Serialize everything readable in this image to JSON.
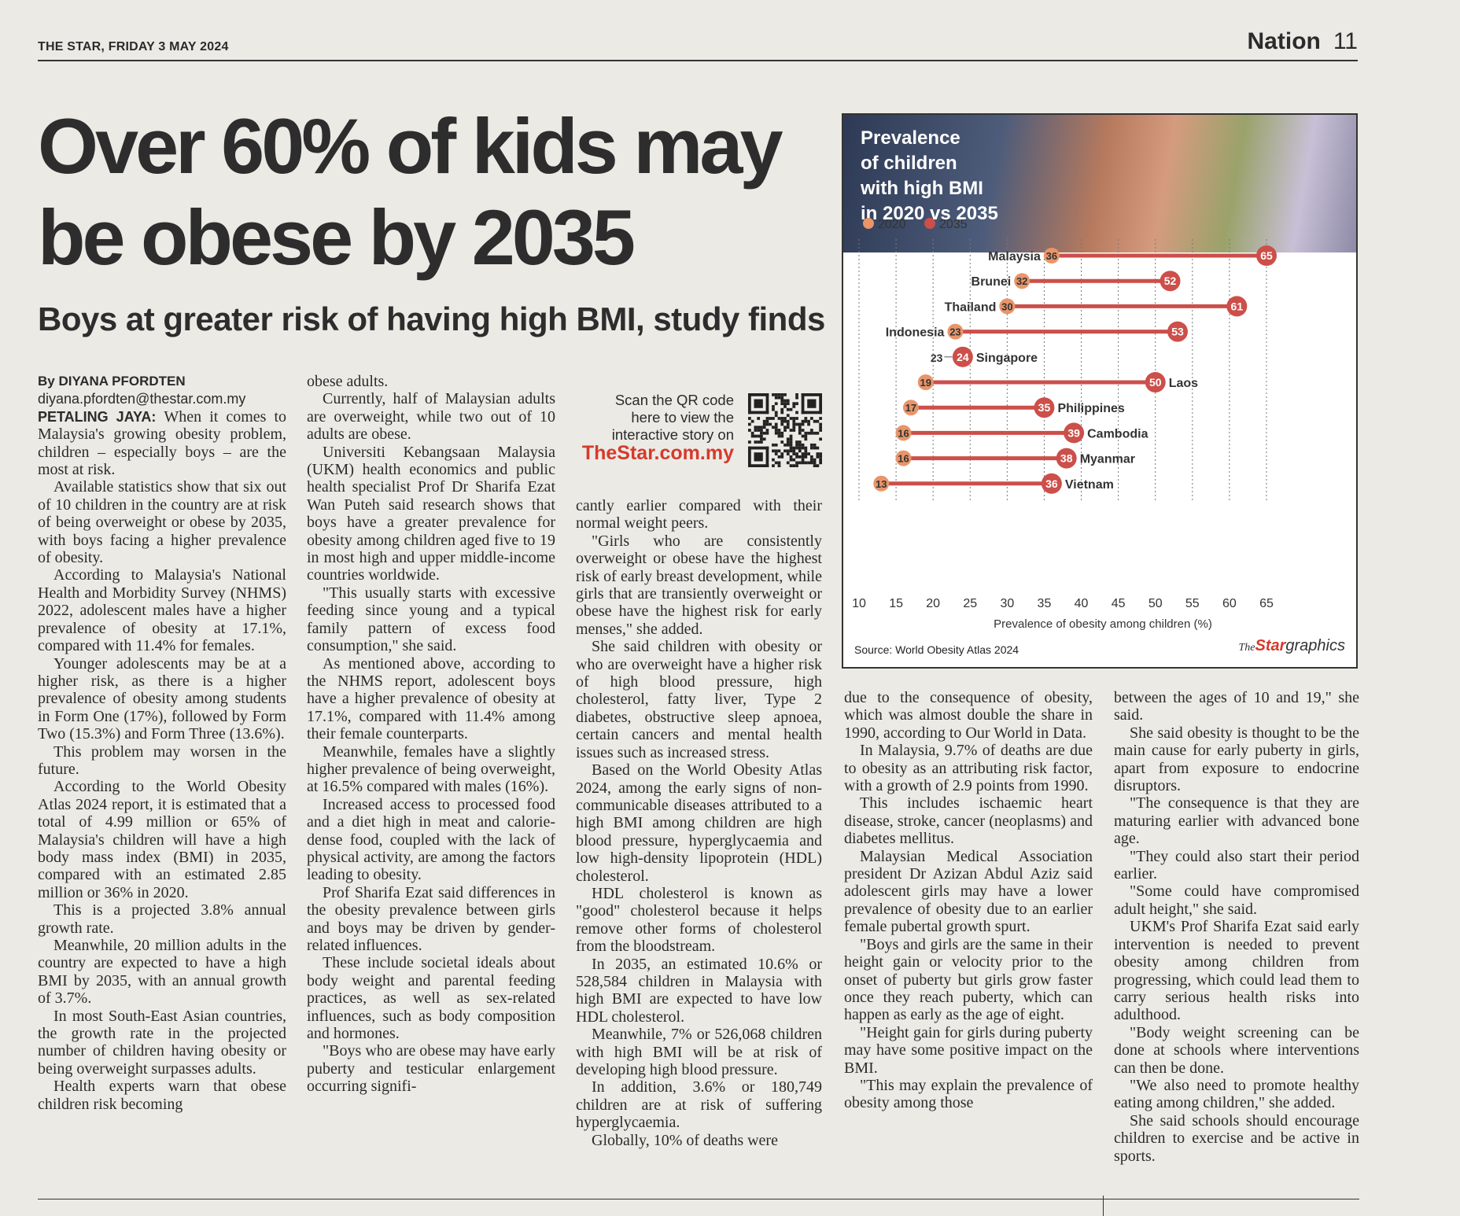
{
  "masthead": {
    "paper": "THE STAR,",
    "date": "FRIDAY 3 MAY 2024",
    "section": "Nation",
    "page": "11"
  },
  "headline": "Over 60% of kids may be obese by 2035",
  "subhead": "Boys at greater risk of having high BMI, study finds",
  "byline": "By DIYANA PFORDTEN",
  "email": "diyana.pfordten@thestar.com.my",
  "dateline": "PETALING JAYA:",
  "qr": {
    "text_line1": "Scan the QR code",
    "text_line2": "here to view the",
    "text_line3": "interactive story on",
    "site": "TheStar.com.my"
  },
  "col1": [
    "When it comes to Malaysia's growing obesity problem, children – especially boys – are the most at risk.",
    "Available statistics show that six out of 10 children in the country are at risk of being overweight or obese by 2035, with boys facing a higher prevalence of obesity.",
    "According to Malaysia's National Health and Morbidity Survey (NHMS) 2022, adolescent males have a higher prevalence of obesity at 17.1%, compared with 11.4% for females.",
    "Younger adolescents may be at a higher risk, as there is a higher prevalence of obesity among students in Form One (17%), followed by Form Two (15.3%) and Form Three (13.6%).",
    "This problem may worsen in the future.",
    "According to the World Obesity Atlas 2024 report, it is estimated that a total of 4.99 million or 65% of Malaysia's children will have a high body mass index (BMI) in 2035, compared with an estimated 2.85 million or 36% in 2020.",
    "This is a projected 3.8% annual growth rate.",
    "Meanwhile, 20 million adults in the country are expected to have a high BMI by 2035, with an annual growth of 3.7%.",
    "In most South-East Asian countries, the growth rate in the projected number of children having obesity or being overweight surpasses adults.",
    "Health experts warn that obese children risk becoming"
  ],
  "col2": [
    "obese adults.",
    "Currently, half of Malaysian adults are overweight, while two out of 10 adults are obese.",
    "Universiti Kebangsaan Malaysia (UKM) health economics and public health specialist Prof Dr Sharifa Ezat Wan Puteh said research shows that boys have a greater prevalence for obesity among children aged five to 19 in most high and upper middle-income countries worldwide.",
    "\"This usually starts with excessive feeding since young and a typical family pattern of excess food consumption,\" she said.",
    "As mentioned above, according to the NHMS report, adolescent boys have a higher prevalence of obesity at 17.1%, compared with 11.4% among their female counterparts.",
    "Meanwhile, females have a slightly higher prevalence of being overweight, at 16.5% compared with males (16%).",
    "Increased access to processed food and a diet high in meat and calorie-dense food, coupled with the lack of physical activity, are among the factors leading to obesity.",
    "Prof Sharifa Ezat said differences in the obesity prevalence between girls and boys may be driven by gender-related influences.",
    "These include societal ideals about body weight and parental feeding practices, as well as sex-related influences, such as body composition and hormones.",
    "\"Boys who are obese may have early puberty and testicular enlargement occurring signifi-"
  ],
  "col3": [
    "cantly earlier compared with their normal weight peers.",
    "\"Girls who are consistently overweight or obese have the highest risk of early breast development, while girls that are transiently overweight or obese have the highest risk for early menses,\" she added.",
    "She said children with obesity or who are overweight have a higher risk of high blood pressure, high cholesterol, fatty liver, Type 2 diabetes, obstructive sleep apnoea, certain cancers and mental health issues such as increased stress.",
    "Based on the World Obesity Atlas 2024, among the early signs of non-communicable diseases attributed to a high BMI among children are high blood pressure, hyperglycaemia and low high-density lipoprotein (HDL) cholesterol.",
    "HDL cholesterol is known as \"good\" cholesterol because it helps remove other forms of cholesterol from the bloodstream.",
    "In 2035, an estimated 10.6% or 528,584 children in Malaysia with high BMI are expected to have low HDL cholesterol.",
    "Meanwhile, 7% or 526,068 children with high BMI will be at risk of developing high blood pressure.",
    "In addition, 3.6% or 180,749 children are at risk of suffering hyperglycaemia.",
    "Globally, 10% of deaths were"
  ],
  "col4": [
    "due to the consequence of obesity, which was almost double the share in 1990, according to Our World in Data.",
    "In Malaysia, 9.7% of deaths are due to obesity as an attributing risk factor, with a growth of 2.9 points from 1990.",
    "This includes ischaemic heart disease, stroke, cancer (neoplasms) and diabetes mellitus.",
    "Malaysian Medical Association president Dr Azizan Abdul Aziz said adolescent girls may have a lower prevalence of obesity due to an earlier female pubertal growth spurt.",
    "\"Boys and girls are the same in their height gain or velocity prior to the onset of puberty but girls grow faster once they reach puberty, which can happen as early as the age of eight.",
    "\"Height gain for girls during puberty may have some positive impact on the BMI.",
    "\"This may explain the prevalence of obesity among those"
  ],
  "col5": [
    "between the ages of 10 and 19,\" she said.",
    "She said obesity is thought to be the main cause for early puberty in girls, apart from exposure to endocrine disruptors.",
    "\"The consequence is that they are maturing earlier with advanced bone age.",
    "\"They could also start their period earlier.",
    "\"Some could have compromised adult height,\" she said.",
    "UKM's Prof Sharifa Ezat said early intervention is needed to prevent obesity among children from progressing, which could lead them to carry serious health risks into adulthood.",
    "\"Body weight screening can be done at schools where interventions can then be done.",
    "\"We also need to promote healthy eating among children,\" she added.",
    "She said schools should encourage children to exercise and be active in sports."
  ],
  "chart_data": {
    "type": "dumbbell",
    "title": "Prevalence of children with high BMI in 2020 vs 2035",
    "xlabel": "Prevalence of obesity among children (%)",
    "xlim": [
      10,
      65
    ],
    "xticks": [
      10,
      15,
      20,
      25,
      30,
      35,
      40,
      45,
      50,
      55,
      60,
      65
    ],
    "grid": true,
    "legend_position": "top-left",
    "series": [
      {
        "name": "2020",
        "color": "#e8956a"
      },
      {
        "name": "2035",
        "color": "#cc4f4a"
      }
    ],
    "categories": [
      "Malaysia",
      "Brunei",
      "Thailand",
      "Indonesia",
      "Singapore",
      "Laos",
      "Philippines",
      "Cambodia",
      "Myanmar",
      "Vietnam"
    ],
    "v2020": [
      36,
      32,
      30,
      23,
      23,
      19,
      17,
      16,
      16,
      13
    ],
    "v2035": [
      65,
      52,
      61,
      53,
      24,
      50,
      35,
      39,
      38,
      36
    ],
    "source": "Source: World Obesity Atlas 2024",
    "brand_the": "The",
    "brand_star": "Star",
    "brand_graphics": "graphics"
  }
}
